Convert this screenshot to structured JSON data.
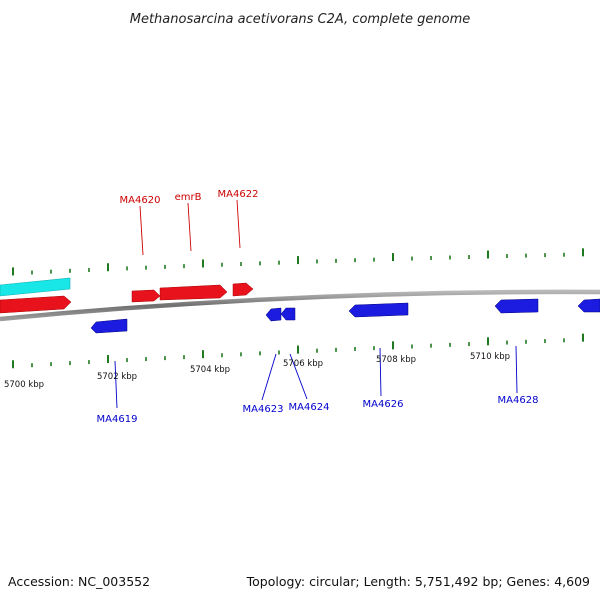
{
  "header": {
    "title": "Methanosarcina acetivorans C2A, complete genome"
  },
  "footer": {
    "accession": "Accession: NC_003552",
    "summary": "Topology: circular; Length: 5,751,492 bp; Genes: 4,609"
  },
  "colors": {
    "forward_gene": "#e8121c",
    "reverse_gene": "#1c1ce0",
    "feature_cyan": "#19e6e6",
    "backbone": "#808080",
    "ticks": "#1f7a1f",
    "forward_label": "#cc0000",
    "reverse_label": "#0000cc"
  },
  "scale_labels": [
    "5700 kbp",
    "5702 kbp",
    "5704 kbp",
    "5706 kbp",
    "5708 kbp",
    "5710 kbp"
  ],
  "genes_forward": [
    {
      "label": "MA4620"
    },
    {
      "label": "emrB"
    },
    {
      "label": "MA4622"
    }
  ],
  "genes_reverse": [
    {
      "label": "MA4619"
    },
    {
      "label": "MA4623"
    },
    {
      "label": "MA4624"
    },
    {
      "label": "MA4626"
    },
    {
      "label": "MA4628"
    }
  ]
}
